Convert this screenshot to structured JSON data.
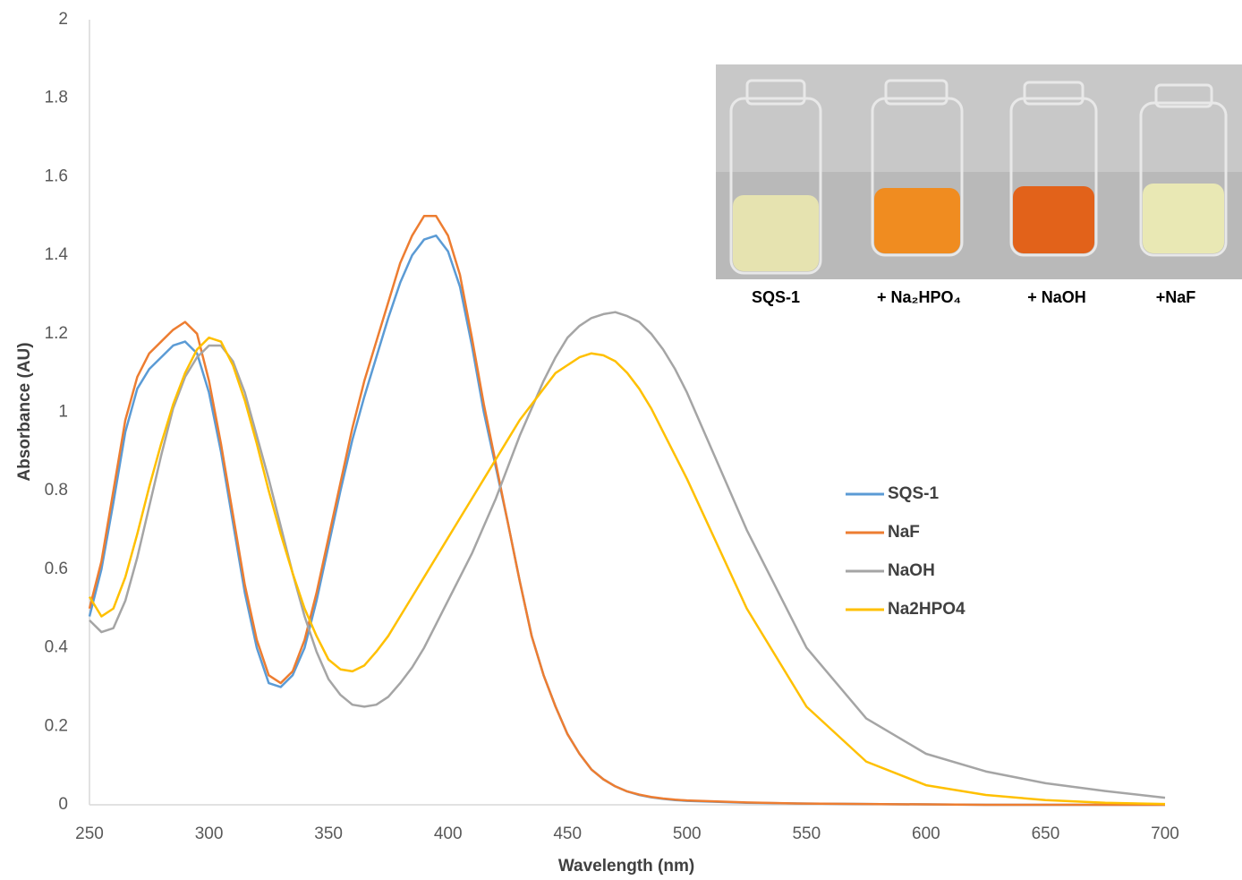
{
  "chart_data": {
    "type": "line",
    "x_label": "Wavelength (nm)",
    "y_label": "Absorbance (AU)",
    "x": [
      250,
      255,
      260,
      265,
      270,
      275,
      280,
      285,
      290,
      295,
      300,
      305,
      310,
      315,
      320,
      325,
      330,
      335,
      340,
      345,
      350,
      355,
      360,
      365,
      370,
      375,
      380,
      385,
      390,
      395,
      400,
      405,
      410,
      415,
      420,
      425,
      430,
      435,
      440,
      445,
      450,
      455,
      460,
      465,
      470,
      475,
      480,
      485,
      490,
      495,
      500,
      525,
      550,
      575,
      600,
      625,
      650,
      675,
      700
    ],
    "series": [
      {
        "name": "SQS-1",
        "color": "#5b9bd5",
        "values": [
          0.48,
          0.6,
          0.77,
          0.95,
          1.06,
          1.11,
          1.14,
          1.17,
          1.18,
          1.15,
          1.05,
          0.9,
          0.72,
          0.54,
          0.4,
          0.31,
          0.3,
          0.33,
          0.4,
          0.52,
          0.66,
          0.8,
          0.93,
          1.04,
          1.14,
          1.24,
          1.33,
          1.4,
          1.44,
          1.45,
          1.41,
          1.32,
          1.17,
          1.0,
          0.86,
          0.72,
          0.57,
          0.43,
          0.33,
          0.25,
          0.18,
          0.13,
          0.09,
          0.065,
          0.047,
          0.034,
          0.025,
          0.019,
          0.015,
          0.012,
          0.01,
          0.005,
          0.003,
          0.002,
          0.001,
          0,
          0,
          0,
          0
        ]
      },
      {
        "name": "NaF",
        "color": "#ed7d31",
        "values": [
          0.5,
          0.62,
          0.8,
          0.98,
          1.09,
          1.15,
          1.18,
          1.21,
          1.23,
          1.2,
          1.08,
          0.92,
          0.74,
          0.56,
          0.42,
          0.33,
          0.31,
          0.34,
          0.42,
          0.54,
          0.68,
          0.82,
          0.96,
          1.08,
          1.18,
          1.28,
          1.38,
          1.45,
          1.5,
          1.5,
          1.45,
          1.35,
          1.19,
          1.02,
          0.87,
          0.72,
          0.57,
          0.43,
          0.33,
          0.25,
          0.18,
          0.13,
          0.09,
          0.065,
          0.047,
          0.034,
          0.026,
          0.02,
          0.016,
          0.013,
          0.011,
          0.006,
          0.003,
          0.002,
          0.001,
          0,
          0,
          0,
          0
        ]
      },
      {
        "name": "NaOH",
        "color": "#a5a5a5",
        "values": [
          0.47,
          0.44,
          0.45,
          0.52,
          0.63,
          0.76,
          0.89,
          1.01,
          1.09,
          1.14,
          1.17,
          1.17,
          1.13,
          1.05,
          0.94,
          0.83,
          0.71,
          0.59,
          0.48,
          0.39,
          0.32,
          0.28,
          0.255,
          0.25,
          0.255,
          0.275,
          0.31,
          0.35,
          0.4,
          0.46,
          0.52,
          0.58,
          0.64,
          0.71,
          0.78,
          0.86,
          0.94,
          1.01,
          1.08,
          1.14,
          1.19,
          1.22,
          1.24,
          1.25,
          1.255,
          1.245,
          1.23,
          1.2,
          1.16,
          1.11,
          1.05,
          0.7,
          0.4,
          0.22,
          0.13,
          0.085,
          0.055,
          0.035,
          0.018
        ]
      },
      {
        "name": "Na2HPO4",
        "color": "#ffc000",
        "values": [
          0.53,
          0.48,
          0.5,
          0.58,
          0.69,
          0.81,
          0.92,
          1.02,
          1.1,
          1.16,
          1.19,
          1.18,
          1.12,
          1.03,
          0.92,
          0.8,
          0.69,
          0.59,
          0.5,
          0.43,
          0.37,
          0.345,
          0.34,
          0.355,
          0.39,
          0.43,
          0.48,
          0.53,
          0.58,
          0.63,
          0.68,
          0.73,
          0.78,
          0.83,
          0.88,
          0.93,
          0.98,
          1.02,
          1.06,
          1.1,
          1.12,
          1.14,
          1.15,
          1.145,
          1.13,
          1.1,
          1.06,
          1.01,
          0.95,
          0.89,
          0.83,
          0.5,
          0.25,
          0.11,
          0.05,
          0.025,
          0.012,
          0.005,
          0.002
        ]
      }
    ],
    "xlim": [
      250,
      700
    ],
    "xticks": [
      250,
      300,
      350,
      400,
      450,
      500,
      550,
      600,
      650,
      700
    ],
    "ylim": [
      0,
      2
    ],
    "yticks": [
      0,
      0.2,
      0.4,
      0.6,
      0.8,
      1,
      1.2,
      1.4,
      1.6,
      1.8,
      2
    ],
    "grid": false,
    "legend": "right",
    "inset_labels": [
      "SQS-1",
      "+ Na₂HPO₄",
      "+ NaOH",
      "+NaF"
    ]
  }
}
